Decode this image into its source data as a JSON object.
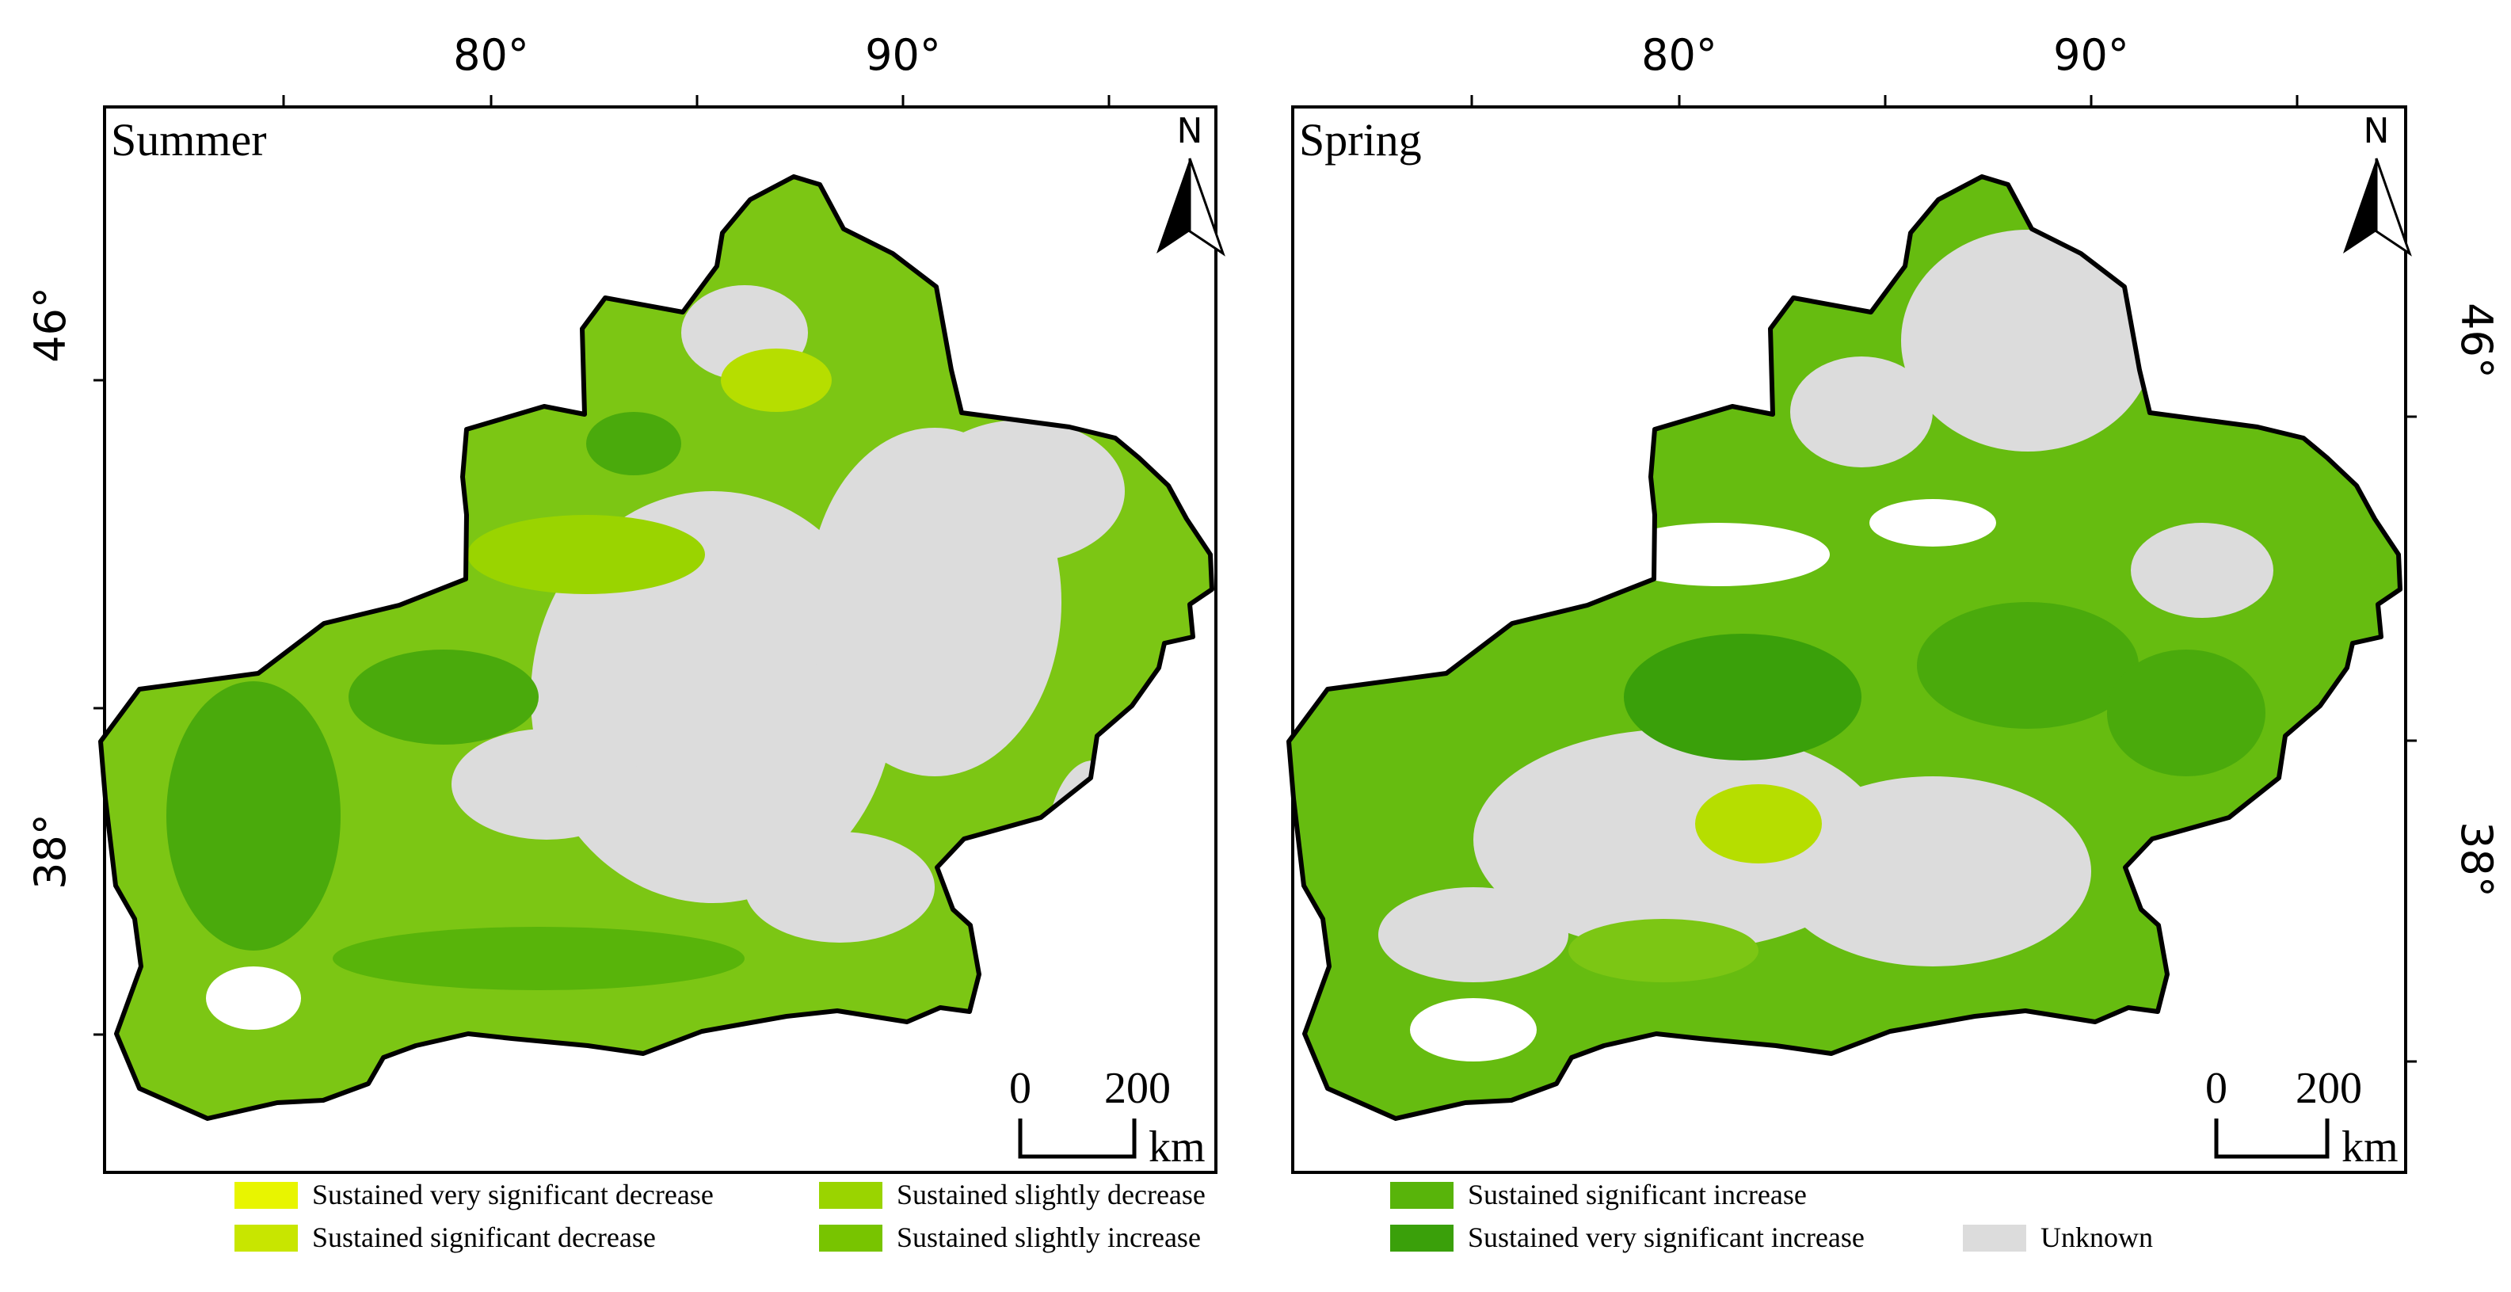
{
  "panels": [
    {
      "title": "Summer",
      "top_ticks": [
        "80°",
        "90°"
      ],
      "side_ticks": [
        "46°",
        "38°"
      ],
      "north": "N",
      "scale": {
        "zero": "0",
        "max": "200",
        "unit": "km"
      },
      "dominant_fill": "#6cc40c"
    },
    {
      "title": "Spring",
      "top_ticks": [
        "80°",
        "90°"
      ],
      "side_ticks": [
        "46°",
        "38°"
      ],
      "north": "N",
      "scale": {
        "zero": "0",
        "max": "200",
        "unit": "km"
      },
      "dominant_fill": "#5cb80e"
    }
  ],
  "legend": [
    {
      "label": "Sustained very significant decrease",
      "color": "#e8f500"
    },
    {
      "label": "Sustained significant decrease",
      "color": "#c8e600"
    },
    {
      "label": "Sustained slightly decrease",
      "color": "#9ad400"
    },
    {
      "label": "Sustained slightly increase",
      "color": "#78c400"
    },
    {
      "label": "Sustained significant increase",
      "color": "#58b40a"
    },
    {
      "label": "Sustained very significant increase",
      "color": "#3aa00a"
    },
    {
      "label": "Unknown",
      "color": "#dcdcdc"
    }
  ]
}
